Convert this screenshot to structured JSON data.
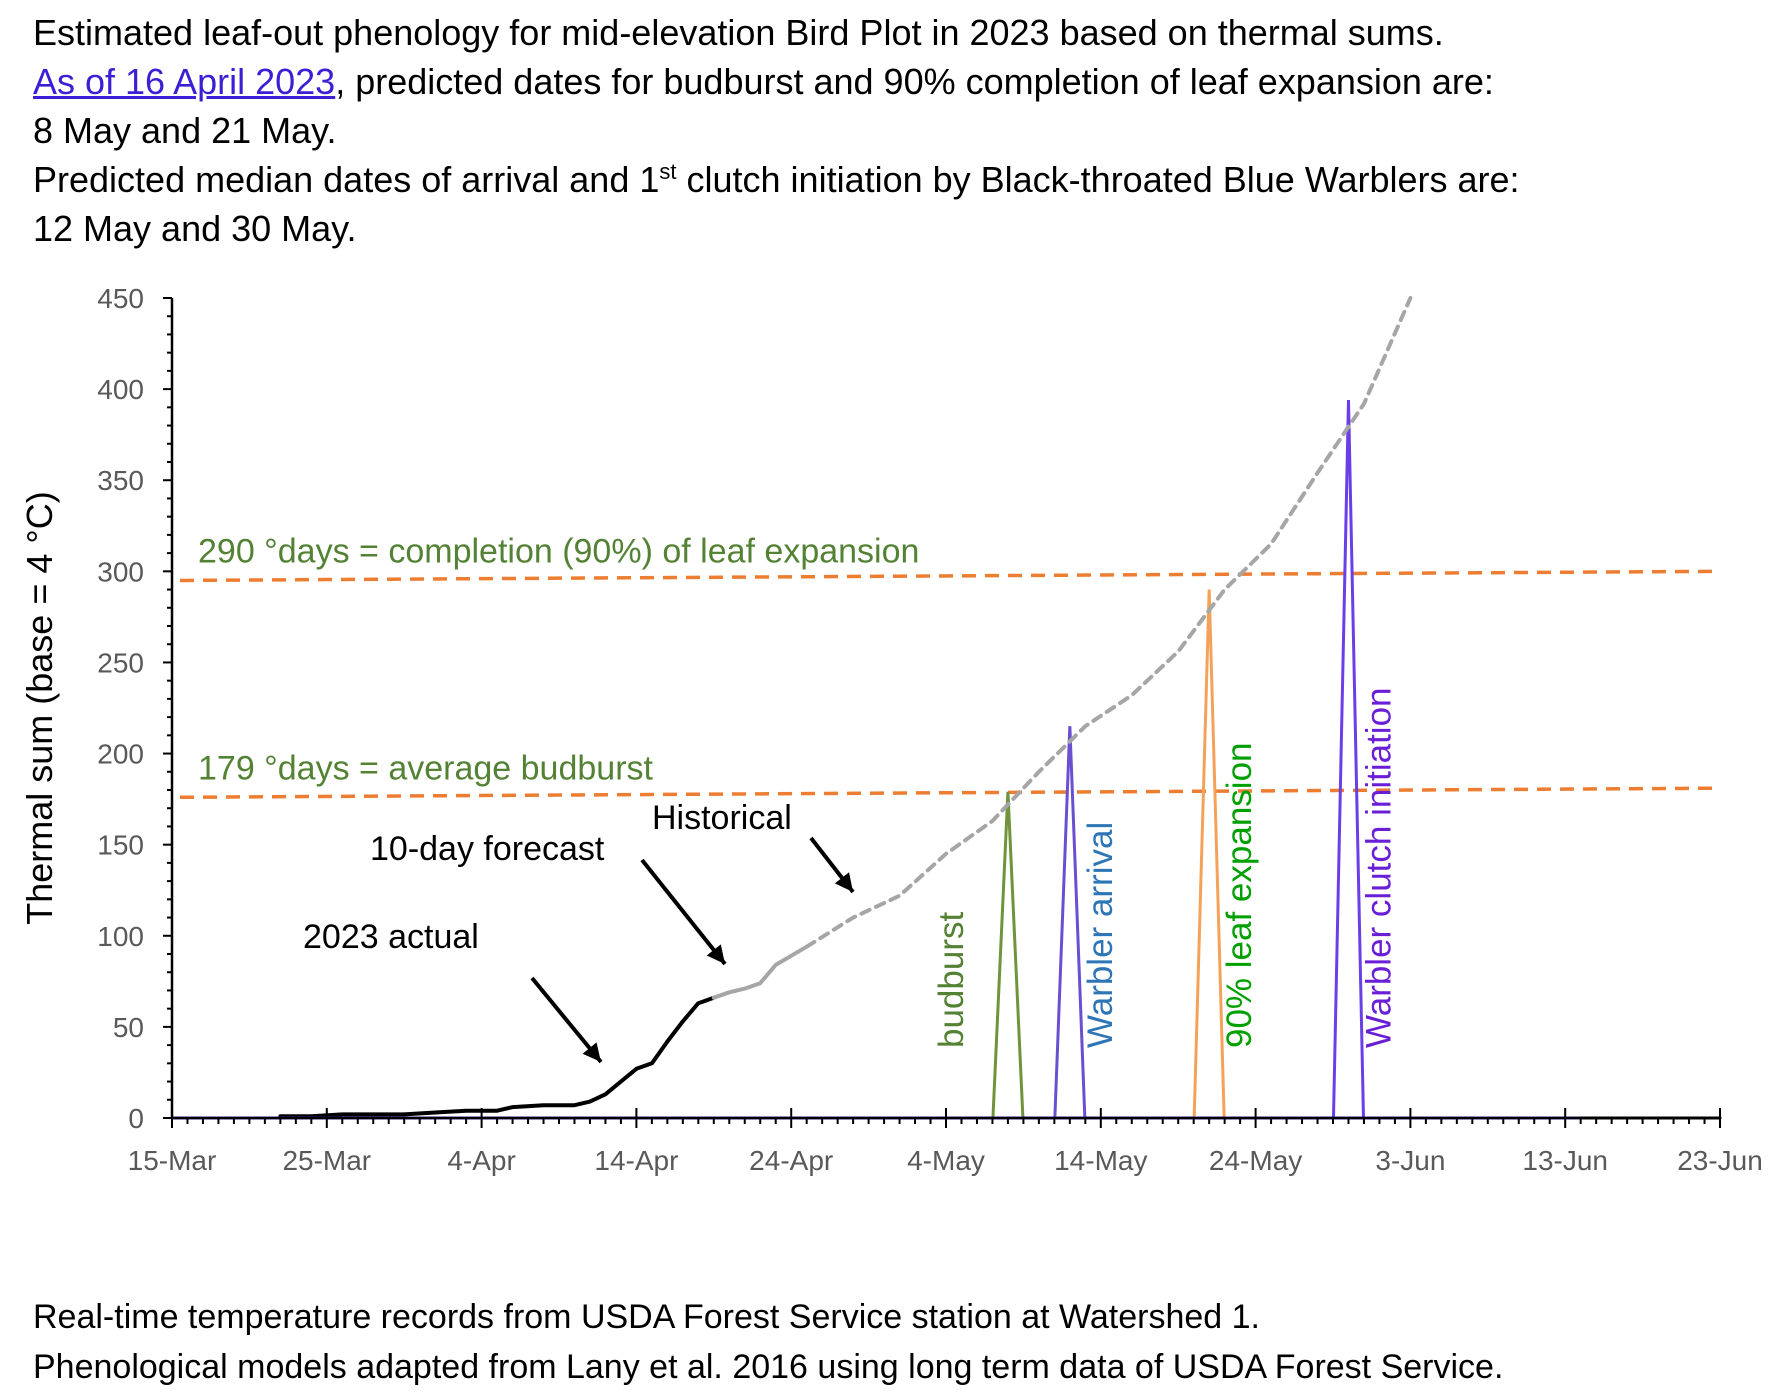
{
  "header": {
    "line1": "Estimated leaf-out phenology for mid-elevation Bird Plot in 2023 based on thermal sums.",
    "link_text": "As of 16 April 2023",
    "line2_rest": ", predicted dates for budburst and 90% completion of leaf expansion are:",
    "line3": "8 May and 21 May.",
    "line4_pre": "Predicted median dates of arrival and 1",
    "line4_sup": "st",
    "line4_post": " clutch initiation by Black-throated Blue Warblers are:",
    "line5": "12 May and 30 May."
  },
  "footer": {
    "line1": "Real-time temperature records from USDA Forest Service station at Watershed 1.",
    "line2": "Phenological models adapted from Lany et al. 2016 using long term data of USDA Forest Service."
  },
  "chart_data": {
    "type": "line",
    "ylabel": "Thermal sum (base = 4 °C)",
    "ylim": [
      0,
      450
    ],
    "y_ticks": [
      0,
      50,
      100,
      150,
      200,
      250,
      300,
      350,
      400,
      450
    ],
    "xlim": [
      "2023-03-15",
      "2023-06-23"
    ],
    "x_tick_labels": [
      "15-Mar",
      "25-Mar",
      "4-Apr",
      "14-Apr",
      "24-Apr",
      "4-May",
      "14-May",
      "24-May",
      "3-Jun",
      "13-Jun",
      "23-Jun"
    ],
    "x_tick_dates": [
      "2023-03-15",
      "2023-03-25",
      "2023-04-04",
      "2023-04-14",
      "2023-04-24",
      "2023-05-04",
      "2023-05-14",
      "2023-05-24",
      "2023-06-03",
      "2023-06-13",
      "2023-06-23"
    ],
    "grid": false,
    "series": [
      {
        "role": "actual",
        "color": "#000000",
        "style": "solid",
        "x": [
          "2023-03-22",
          "2023-03-24",
          "2023-03-26",
          "2023-03-28",
          "2023-03-30",
          "2023-04-01",
          "2023-04-03",
          "2023-04-05",
          "2023-04-06",
          "2023-04-08",
          "2023-04-10",
          "2023-04-11",
          "2023-04-12",
          "2023-04-14",
          "2023-04-15",
          "2023-04-16"
        ],
        "values": [
          1,
          1,
          2,
          2,
          2,
          3,
          4,
          4,
          6,
          7,
          7,
          9,
          13,
          27,
          30,
          42
        ]
      },
      {
        "role": "actual-continued",
        "color": "#000000",
        "style": "solid",
        "x": [
          "2023-04-16",
          "2023-04-17",
          "2023-04-18",
          "2023-04-19"
        ],
        "values": [
          42,
          53,
          63,
          66
        ]
      },
      {
        "role": "forecast",
        "color": "#a6a6a6",
        "style": "solid",
        "x": [
          "2023-04-19",
          "2023-04-20",
          "2023-04-21",
          "2023-04-22",
          "2023-04-23",
          "2023-04-24",
          "2023-04-25"
        ],
        "values": [
          66,
          69,
          71,
          74,
          84,
          89,
          94
        ]
      },
      {
        "role": "historical",
        "color": "#a6a6a6",
        "style": "dashed",
        "x": [
          "2023-04-25",
          "2023-04-28",
          "2023-05-01",
          "2023-05-04",
          "2023-05-07",
          "2023-05-10",
          "2023-05-13",
          "2023-05-16",
          "2023-05-19",
          "2023-05-22",
          "2023-05-25",
          "2023-05-28",
          "2023-05-31",
          "2023-06-03"
        ],
        "values": [
          94,
          110,
          122,
          145,
          163,
          190,
          215,
          232,
          256,
          290,
          315,
          354,
          392,
          450
        ]
      },
      {
        "role": "baseline",
        "color": "#5b2fd6",
        "style": "solid",
        "x": [
          "2023-03-15",
          "2023-06-14"
        ],
        "values": [
          0,
          0
        ]
      },
      {
        "role": "baseline-tail",
        "color": "#000000",
        "style": "solid",
        "x": [
          "2023-06-14",
          "2023-06-23"
        ],
        "values": [
          0,
          0
        ]
      }
    ],
    "thresholds": [
      {
        "label": "290 °days = completion (90%) of leaf expansion",
        "y_start": 295,
        "y_end": 300,
        "color": "#ed7d31",
        "label_color": "#548235"
      },
      {
        "label": "179 °days = average budburst",
        "y_start": 176,
        "y_end": 181,
        "color": "#ed7d31",
        "label_color": "#548235"
      }
    ],
    "spikes": [
      {
        "label": "budburst",
        "date": "2023-05-08",
        "height": 179,
        "color": "#70943c",
        "label_color": "#548235"
      },
      {
        "label": "Warbler arrival",
        "date": "2023-05-12",
        "height": 215,
        "color": "#6a4fd0",
        "label_color": "#2e75b6"
      },
      {
        "label": "90% leaf  expansion",
        "date": "2023-05-21",
        "height": 290,
        "color": "#f4a25a",
        "label_color": "#00a000"
      },
      {
        "label": "Warbler clutch initiation",
        "date": "2023-05-30",
        "height": 394,
        "color": "#6a3fe8",
        "label_color": "#6a1fd6"
      }
    ],
    "annotations": [
      {
        "text": "2023 actual",
        "points_to": "actual"
      },
      {
        "text": "10-day forecast",
        "points_to": "forecast"
      },
      {
        "text": "Historical",
        "points_to": "historical"
      }
    ]
  }
}
